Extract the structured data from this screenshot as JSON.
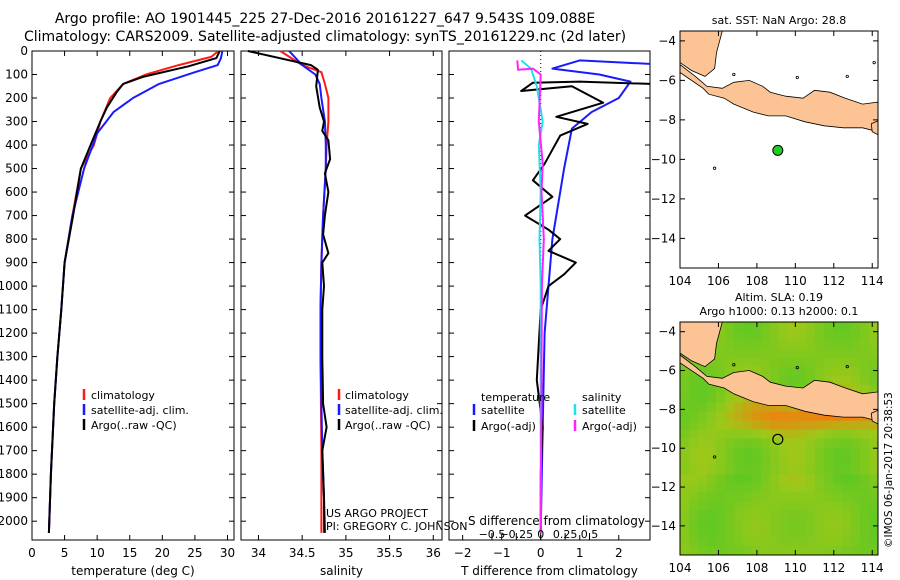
{
  "header": {
    "title_line1": "Argo profile: AO 1901445_225 27-Dec-2016 20161227_647 9.543S 109.088E",
    "title_line2": "Climatology: CARS2009. Satellite-adjusted climatology: synTS_20161229.nc (2d later)"
  },
  "credit": {
    "project": "US ARGO PROJECT",
    "pi": "PI: GREGORY C. JOHNSON",
    "stamp": "©IMOS 06-Jan-2017 20:38:53"
  },
  "colors": {
    "climatology": "#ff1a1a",
    "satellite": "#1a1aff",
    "argo": "#000000",
    "salinity_satellite": "#22e0e8",
    "salinity_argo": "#ff22ff",
    "land": "#fcc495",
    "ocean_marker": "#22cc22"
  },
  "chart_data": [
    {
      "id": "temperature",
      "type": "line",
      "xlabel": "temperature (deg C)",
      "ylabel": "",
      "xlim": [
        0,
        31
      ],
      "ylim": [
        2080,
        0
      ],
      "xticks": [
        "0",
        "5",
        "10",
        "15",
        "20",
        "25",
        "30"
      ],
      "yticks": [
        "0",
        "100",
        "200",
        "300",
        "400",
        "500",
        "600",
        "700",
        "800",
        "900",
        "1000",
        "1100",
        "1200",
        "1300",
        "1400",
        "1500",
        "1600",
        "1700",
        "1800",
        "1900",
        "2000"
      ],
      "legend": [
        "climatology",
        "satellite-adj. clim.",
        "Argo(..raw -QC)"
      ],
      "series": [
        {
          "name": "climatology",
          "color": "climatology",
          "x": [
            28.6,
            27.5,
            22.5,
            17.5,
            14.0,
            12.0,
            10.5,
            9.5,
            7.5,
            6.2,
            5.0,
            4.5,
            3.9,
            3.4,
            2.9,
            2.6
          ],
          "y": [
            0,
            25,
            60,
            100,
            140,
            200,
            300,
            400,
            500,
            700,
            900,
            1100,
            1300,
            1500,
            1800,
            2050
          ]
        },
        {
          "name": "satellite-adj. clim.",
          "color": "satellite",
          "x": [
            29.2,
            29.0,
            28.5,
            25.0,
            19.5,
            15.5,
            12.5,
            10.0,
            8.0,
            6.2,
            5.0,
            4.5,
            3.9,
            3.4,
            2.9,
            2.6
          ],
          "y": [
            0,
            30,
            60,
            90,
            140,
            200,
            260,
            350,
            500,
            700,
            900,
            1100,
            1300,
            1500,
            1800,
            2050
          ]
        },
        {
          "name": "Argo(..raw -QC)",
          "color": "argo",
          "x": [
            28.8,
            28.3,
            24.0,
            17.0,
            14.0,
            13.0,
            11.5,
            10.5,
            9.0,
            7.5,
            6.3,
            5.0,
            4.5,
            3.9,
            3.4,
            2.9,
            2.6
          ],
          "y": [
            0,
            30,
            65,
            110,
            140,
            175,
            240,
            300,
            400,
            500,
            700,
            900,
            1100,
            1300,
            1500,
            1800,
            2050
          ]
        }
      ]
    },
    {
      "id": "salinity",
      "type": "line",
      "xlabel": "salinity",
      "xlim": [
        33.8,
        36.1
      ],
      "ylim": [
        2080,
        0
      ],
      "xticks": [
        "34",
        "34.5",
        "35",
        "35.5",
        "36"
      ],
      "legend": [
        "climatology",
        "satellite-adj. clim.",
        "Argo(..raw -QC)"
      ],
      "series": [
        {
          "name": "climatology",
          "color": "climatology",
          "x": [
            34.25,
            34.5,
            34.72,
            34.76,
            34.8,
            34.8,
            34.78,
            34.77,
            34.74,
            34.72,
            34.71,
            34.71,
            34.72,
            34.72
          ],
          "y": [
            0,
            60,
            90,
            140,
            200,
            300,
            400,
            500,
            700,
            900,
            1100,
            1300,
            1700,
            2050
          ]
        },
        {
          "name": "satellite-adj. clim.",
          "color": "satellite",
          "x": [
            34.35,
            34.5,
            34.65,
            34.7,
            34.72,
            34.76,
            34.77,
            34.77,
            34.74,
            34.72,
            34.71,
            34.71,
            34.73,
            34.75,
            34.75
          ],
          "y": [
            0,
            60,
            100,
            140,
            200,
            300,
            400,
            500,
            700,
            900,
            1100,
            1300,
            1700,
            1900,
            2050
          ]
        },
        {
          "name": "Argo(..raw -QC)",
          "color": "argo",
          "x": [
            33.88,
            34.6,
            34.68,
            34.66,
            34.7,
            34.75,
            34.73,
            34.8,
            34.82,
            34.76,
            34.8,
            34.78,
            34.76,
            34.74,
            34.8,
            34.73,
            34.75,
            34.73,
            34.73,
            34.74,
            34.78,
            34.73,
            34.75,
            34.76
          ],
          "y": [
            0,
            60,
            80,
            150,
            240,
            300,
            340,
            380,
            460,
            520,
            600,
            650,
            700,
            780,
            860,
            900,
            1000,
            1100,
            1300,
            1500,
            1600,
            1700,
            1900,
            2050
          ]
        }
      ]
    },
    {
      "id": "difference",
      "type": "line",
      "xlabel": "T difference from climatology",
      "xlabel_top": "S difference from climatology",
      "xlim": [
        -2.35,
        2.8
      ],
      "ylim": [
        2080,
        0
      ],
      "xticks_t": [
        "−2",
        "−1",
        "0",
        "1",
        "2"
      ],
      "xticks_s": [
        "−0.5",
        "−0.25",
        "0",
        "0.25",
        "0.5"
      ],
      "legend_temperature": {
        "title": "temperature",
        "items": [
          "satellite",
          "Argo(-adj)"
        ]
      },
      "legend_salinity": {
        "title": "salinity",
        "items": [
          "satellite",
          "Argo(-adj)"
        ]
      },
      "series": [
        {
          "name": "temperature satellite",
          "color": "satellite",
          "x": [
            2.8,
            1.0,
            0.3,
            1.5,
            2.3,
            2.0,
            1.3,
            0.8,
            0.6,
            0.5,
            0.4,
            0.3,
            0.2,
            0.1,
            0.05,
            0.0
          ],
          "y": [
            55,
            40,
            75,
            100,
            130,
            200,
            260,
            330,
            500,
            600,
            700,
            800,
            1000,
            1200,
            1600,
            2050
          ]
        },
        {
          "name": "temperature Argo(-adj)",
          "color": "argo",
          "x": [
            2.8,
            1.0,
            -0.2,
            -0.5,
            0.8,
            1.6,
            0.4,
            1.2,
            0.5,
            0.3,
            0.1,
            -0.2,
            0.3,
            -0.4,
            0.2,
            0.5,
            0.2,
            0.9,
            0.6,
            0.2,
            0.0,
            -0.1,
            0.05,
            0.0,
            0.0
          ],
          "y": [
            140,
            130,
            135,
            170,
            150,
            220,
            280,
            310,
            360,
            420,
            480,
            550,
            620,
            700,
            760,
            800,
            850,
            900,
            950,
            1000,
            1100,
            1400,
            1600,
            1800,
            2050
          ]
        },
        {
          "name": "salinity satellite",
          "color": "salinity_satellite",
          "x": [
            -0.5,
            -0.25,
            -0.1,
            0.05,
            -0.05,
            0.0,
            -0.03,
            0.0,
            0.0,
            0.0,
            0.0
          ],
          "y": [
            40,
            75,
            150,
            300,
            400,
            600,
            800,
            1000,
            1300,
            1600,
            2050
          ]
        },
        {
          "name": "salinity Argo(-adj)",
          "color": "salinity_argo",
          "x": [
            -0.6,
            -0.58,
            -0.2,
            0.0,
            -0.05,
            0.05,
            0.02,
            0.05,
            0.08,
            0.03,
            0.02,
            0.0
          ],
          "y": [
            40,
            80,
            75,
            100,
            300,
            480,
            600,
            700,
            800,
            1000,
            1400,
            2050
          ]
        }
      ]
    },
    {
      "id": "sst_map",
      "type": "scatter",
      "title": "sat. SST: NaN Argo: 28.8",
      "xlim": [
        104,
        114.3
      ],
      "ylim": [
        -15.5,
        -3.5
      ],
      "xticks": [
        "104",
        "106",
        "108",
        "110",
        "112",
        "114"
      ],
      "yticks": [
        "−4",
        "−6",
        "−8",
        "−10",
        "−12",
        "−14"
      ],
      "points": [
        {
          "lon": 109.088,
          "lat": -9.543,
          "label": "Argo profile position"
        }
      ]
    },
    {
      "id": "sla_map",
      "type": "heatmap",
      "title_line1": "Altim. SLA: 0.19",
      "title_line2": "Argo h1000: 0.13 h2000: 0.1",
      "xlim": [
        104,
        114.3
      ],
      "ylim": [
        -15.5,
        -3.5
      ],
      "xticks": [
        "104",
        "106",
        "108",
        "110",
        "112",
        "114"
      ],
      "yticks": [
        "−4",
        "−6",
        "−8",
        "−10",
        "−12",
        "−14"
      ],
      "points": [
        {
          "lon": 109.088,
          "lat": -9.543,
          "label": "Argo profile position"
        }
      ]
    }
  ]
}
